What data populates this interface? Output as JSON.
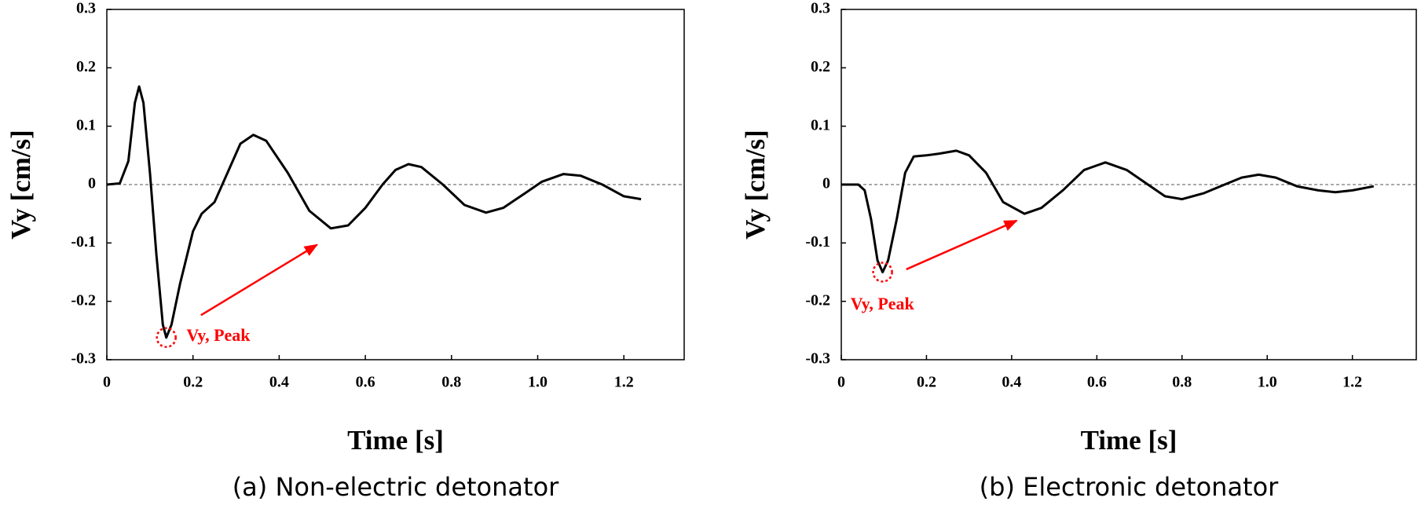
{
  "chart_data": [
    {
      "type": "line",
      "caption": "(a) Non-electric detonator",
      "xlabel": "Time [s]",
      "ylabel": "Vy [cm/s]",
      "annotation": "Vy, Peak",
      "annotation_color": "#ff0000",
      "color": "#000000",
      "x": [
        0,
        0.03,
        0.05,
        0.065,
        0.075,
        0.085,
        0.1,
        0.115,
        0.13,
        0.138,
        0.15,
        0.17,
        0.2,
        0.22,
        0.25,
        0.28,
        0.31,
        0.34,
        0.37,
        0.42,
        0.47,
        0.52,
        0.56,
        0.6,
        0.64,
        0.67,
        0.7,
        0.73,
        0.78,
        0.83,
        0.88,
        0.92,
        0.97,
        1.01,
        1.06,
        1.1,
        1.15,
        1.2,
        1.24
      ],
      "values": [
        0,
        0.002,
        0.04,
        0.14,
        0.168,
        0.14,
        0.02,
        -0.12,
        -0.24,
        -0.262,
        -0.24,
        -0.17,
        -0.08,
        -0.05,
        -0.03,
        0.02,
        0.07,
        0.085,
        0.075,
        0.02,
        -0.045,
        -0.075,
        -0.07,
        -0.04,
        0.0,
        0.025,
        0.035,
        0.03,
        0.0,
        -0.035,
        -0.048,
        -0.04,
        -0.015,
        0.005,
        0.018,
        0.015,
        0.0,
        -0.02,
        -0.025
      ],
      "xlim": [
        0,
        1.34
      ],
      "xticks": [
        0,
        0.2,
        0.4,
        0.6,
        0.8,
        {
          "value": 1,
          "label": "1.0"
        },
        1.2
      ],
      "ylim": [
        -0.3,
        0.3
      ],
      "yticks": [
        -0.3,
        -0.2,
        -0.1,
        0,
        0.1,
        0.2,
        0.3
      ]
    },
    {
      "type": "line",
      "caption": "(b) Electronic detonator",
      "xlabel": "Time [s]",
      "ylabel": "Vy [cm/s]",
      "annotation": "Vy, Peak",
      "annotation_color": "#ff0000",
      "color": "#000000",
      "x": [
        0,
        0.04,
        0.055,
        0.07,
        0.085,
        0.097,
        0.11,
        0.13,
        0.15,
        0.17,
        0.2,
        0.23,
        0.27,
        0.3,
        0.34,
        0.38,
        0.43,
        0.47,
        0.52,
        0.57,
        0.62,
        0.67,
        0.72,
        0.76,
        0.8,
        0.85,
        0.9,
        0.94,
        0.98,
        1.02,
        1.07,
        1.12,
        1.16,
        1.2,
        1.25
      ],
      "values": [
        0,
        0.0,
        -0.01,
        -0.06,
        -0.13,
        -0.15,
        -0.13,
        -0.06,
        0.02,
        0.048,
        0.05,
        0.053,
        0.058,
        0.05,
        0.02,
        -0.03,
        -0.05,
        -0.04,
        -0.01,
        0.025,
        0.038,
        0.025,
        0.0,
        -0.02,
        -0.025,
        -0.015,
        0.0,
        0.012,
        0.017,
        0.012,
        -0.003,
        -0.01,
        -0.013,
        -0.01,
        -0.003
      ],
      "xlim": [
        0,
        1.35
      ],
      "xticks": [
        0,
        0.2,
        0.4,
        0.6,
        0.8,
        {
          "value": 1,
          "label": "1.0"
        },
        1.2
      ],
      "ylim": [
        -0.3,
        0.3
      ],
      "yticks": [
        -0.3,
        -0.2,
        -0.1,
        0,
        0.1,
        0.2,
        0.3
      ]
    }
  ]
}
